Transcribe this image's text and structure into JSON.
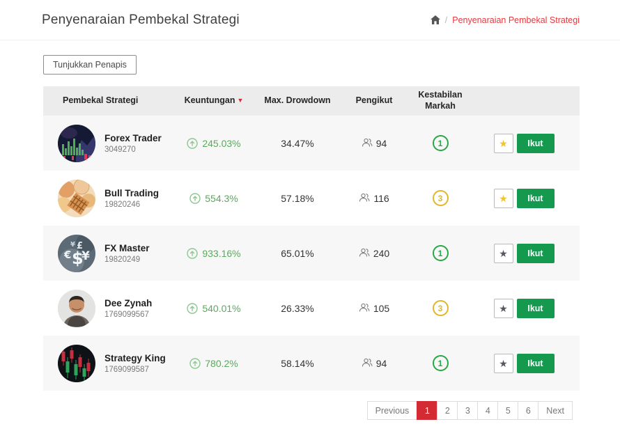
{
  "page": {
    "title": "Penyenaraian Pembekal Strategi",
    "breadcrumb": {
      "home_icon": "home-icon",
      "separator": "/",
      "current": "Penyenaraian Pembekal Strategi"
    }
  },
  "filters": {
    "toggle_label": "Tunjukkan Penapis"
  },
  "table": {
    "columns": [
      "Pembekal Strategi",
      "Keuntungan",
      "Max. Drowdown",
      "Pengikut",
      "Kestabilan Markah"
    ],
    "sort": {
      "column": "Keuntungan",
      "direction": "desc"
    },
    "rows": [
      {
        "name": "Forex Trader",
        "id": "3049270",
        "profit": "245.03%",
        "drawdown": "34.47%",
        "followers": "94",
        "stability": "1",
        "stability_color": "green",
        "starred": true,
        "follow_label": "Ikut",
        "avatar": "green-bar-chart-avatar"
      },
      {
        "name": "Bull Trading",
        "id": "19820246",
        "profit": "554.3%",
        "drawdown": "57.18%",
        "followers": "116",
        "stability": "3",
        "stability_color": "yellow",
        "starred": true,
        "follow_label": "Ikut",
        "avatar": "coins-avatar"
      },
      {
        "name": "FX Master",
        "id": "19820249",
        "profit": "933.16%",
        "drawdown": "65.01%",
        "followers": "240",
        "stability": "1",
        "stability_color": "green",
        "starred": false,
        "follow_label": "Ikut",
        "avatar": "currency-symbols-avatar"
      },
      {
        "name": "Dee Zynah",
        "id": "1769099567",
        "profit": "540.01%",
        "drawdown": "26.33%",
        "followers": "105",
        "stability": "3",
        "stability_color": "yellow",
        "starred": false,
        "follow_label": "Ikut",
        "avatar": "man-photo-avatar"
      },
      {
        "name": "Strategy King",
        "id": "1769099587",
        "profit": "780.2%",
        "drawdown": "58.14%",
        "followers": "94",
        "stability": "1",
        "stability_color": "green",
        "starred": false,
        "follow_label": "Ikut",
        "avatar": "candlestick-chart-avatar"
      }
    ]
  },
  "pagination": {
    "previous_label": "Previous",
    "pages": [
      "1",
      "2",
      "3",
      "4",
      "5",
      "6"
    ],
    "active_page": "1",
    "next_label": "Next"
  },
  "icons": {
    "profit_arrow": "arrow-up-circle-icon",
    "followers": "users-icon",
    "sort": "caret-down-icon",
    "star": "star-icon"
  },
  "colors": {
    "breadcrumb_red": "#e8363d",
    "active_page_red": "#d42a33",
    "follow_green": "#14994f",
    "profit_green": "#5aa95d",
    "stability_green": "#28a745",
    "stability_yellow": "#e0b62a",
    "star_gold": "#f0c330",
    "header_gray": "#ececec",
    "stripe_gray": "#f7f7f7"
  }
}
